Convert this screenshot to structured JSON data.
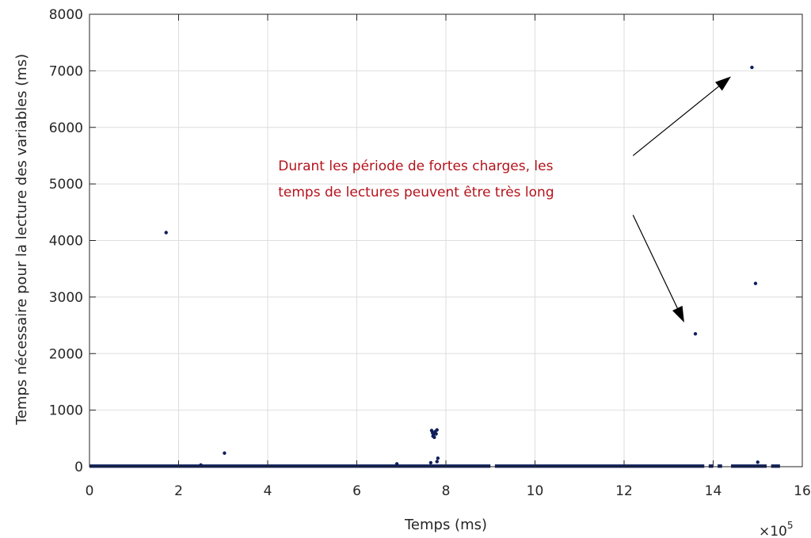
{
  "chart_data": {
    "type": "scatter",
    "title": "",
    "xlabel": "Temps (ms)",
    "ylabel": "Temps nécessaire pour la lecture des variables (ms)",
    "x_multiplier_label": "×10",
    "x_multiplier_exponent": "5",
    "xlim": [
      0,
      16
    ],
    "ylim": [
      0,
      8000
    ],
    "xticks": [
      0,
      2,
      4,
      6,
      8,
      10,
      12,
      14,
      16
    ],
    "xtick_labels": [
      "0",
      "2",
      "4",
      "6",
      "8",
      "10",
      "12",
      "14",
      "16"
    ],
    "yticks": [
      0,
      1000,
      2000,
      3000,
      4000,
      5000,
      6000,
      7000,
      8000
    ],
    "ytick_labels": [
      "0",
      "1000",
      "2000",
      "3000",
      "4000",
      "5000",
      "6000",
      "7000",
      "8000"
    ],
    "grid": true,
    "marker_color": "#0f1f5c",
    "baseline_segments": [
      [
        0,
        9.0
      ],
      [
        9.1,
        13.8
      ],
      [
        13.9,
        14.0
      ],
      [
        14.1,
        14.2
      ],
      [
        14.4,
        15.2
      ],
      [
        15.3,
        15.5
      ]
    ],
    "outliers": [
      {
        "x": 1.72,
        "y": 4140
      },
      {
        "x": 3.03,
        "y": 240
      },
      {
        "x": 13.6,
        "y": 2350
      },
      {
        "x": 14.87,
        "y": 7060
      },
      {
        "x": 14.95,
        "y": 3240
      },
      {
        "x": 7.68,
        "y": 640
      },
      {
        "x": 7.7,
        "y": 600
      },
      {
        "x": 7.72,
        "y": 560
      },
      {
        "x": 7.74,
        "y": 520
      },
      {
        "x": 7.76,
        "y": 620
      },
      {
        "x": 7.78,
        "y": 580
      },
      {
        "x": 7.8,
        "y": 650
      },
      {
        "x": 7.71,
        "y": 540
      },
      {
        "x": 7.75,
        "y": 610
      },
      {
        "x": 7.82,
        "y": 150
      },
      {
        "x": 7.8,
        "y": 90
      },
      {
        "x": 7.66,
        "y": 70
      },
      {
        "x": 6.9,
        "y": 50
      },
      {
        "x": 2.5,
        "y": 30
      },
      {
        "x": 15.0,
        "y": 80
      }
    ],
    "annotation": {
      "lines": [
        "Durant les période de fortes charges, les",
        "temps de lectures peuvent être très long"
      ],
      "text_anchor": {
        "x": 4.2,
        "y": 5240
      },
      "arrows": [
        {
          "from": {
            "x": 12.2,
            "y": 5500
          },
          "to": {
            "x": 14.4,
            "y": 6900
          }
        },
        {
          "from": {
            "x": 12.2,
            "y": 4450
          },
          "to": {
            "x": 13.35,
            "y": 2550
          }
        }
      ],
      "color": "#b5121b"
    }
  }
}
